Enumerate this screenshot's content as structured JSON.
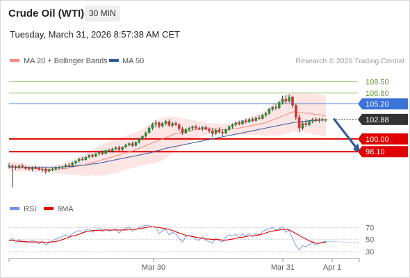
{
  "header": {
    "title": "Crude Oil (WTI)",
    "timeframe": "30 MIN",
    "datetime": "Tuesday, March 31, 2026 8:57:38 AM CET"
  },
  "colors": {
    "ma20": "#f08a80",
    "bollinger_fill": "#fde0df",
    "ma50": "#2f5b9b",
    "green_level": "#9bcf73",
    "blue_level": "#3b73d9",
    "red_level": "#e00000",
    "last_price": "#333333",
    "arrow": "#2f5b9b",
    "candle_up": "#2e8b3a",
    "candle_down": "#d23232",
    "rsi": "#6f93e6",
    "rsi_ma": "#e00000"
  },
  "chart_data": [
    {
      "type": "candlestick",
      "legend": [
        {
          "name": "MA 20 + Bollinger Bands",
          "color": "#f08a80"
        },
        {
          "name": "MA 50",
          "color": "#2f5b9b"
        }
      ],
      "copyright": "Research © 2026 Trading Central",
      "ylim": [
        90.8,
        110.4
      ],
      "x_ticks": [
        "Mar 30",
        "Mar 31",
        "Apr 1"
      ],
      "levels": [
        {
          "value": 108.5,
          "label": "108.50",
          "kind": "resistance",
          "color": "#9bcf73"
        },
        {
          "value": 106.8,
          "label": "106.80",
          "kind": "resistance",
          "color": "#9bcf73"
        },
        {
          "value": 105.2,
          "label": "105.20",
          "kind": "pivot",
          "color": "#3b73d9"
        },
        {
          "value": 102.88,
          "label": "102.88",
          "kind": "last",
          "color": "#333333"
        },
        {
          "value": 100.0,
          "label": "100.00",
          "kind": "target",
          "color": "#e00000"
        },
        {
          "value": 98.1,
          "label": "98.10",
          "kind": "target",
          "color": "#e00000"
        }
      ],
      "ohlc": [
        [
          96.0,
          96.4,
          95.6,
          96.0
        ],
        [
          96.0,
          96.2,
          92.8,
          95.9
        ],
        [
          95.9,
          96.1,
          95.4,
          95.7
        ],
        [
          95.7,
          96.2,
          95.5,
          96.0
        ],
        [
          96.0,
          96.3,
          95.6,
          95.8
        ],
        [
          95.8,
          96.0,
          95.4,
          95.6
        ],
        [
          95.6,
          95.9,
          95.3,
          95.5
        ],
        [
          95.5,
          95.9,
          95.2,
          95.7
        ],
        [
          95.7,
          96.0,
          95.5,
          95.6
        ],
        [
          95.6,
          95.9,
          95.3,
          95.4
        ],
        [
          95.4,
          95.8,
          95.1,
          95.5
        ],
        [
          95.5,
          95.7,
          94.8,
          95.2
        ],
        [
          95.2,
          95.6,
          95.0,
          95.4
        ],
        [
          95.4,
          95.7,
          95.2,
          95.5
        ],
        [
          95.5,
          95.9,
          95.3,
          95.7
        ],
        [
          95.7,
          96.0,
          95.5,
          95.8
        ],
        [
          95.8,
          96.0,
          95.5,
          95.9
        ],
        [
          95.9,
          96.3,
          95.7,
          96.1
        ],
        [
          96.1,
          96.4,
          95.8,
          96.0
        ],
        [
          96.0,
          96.6,
          95.9,
          96.4
        ],
        [
          96.4,
          96.8,
          96.2,
          96.7
        ],
        [
          96.7,
          97.2,
          96.5,
          97.0
        ],
        [
          97.0,
          97.3,
          96.7,
          96.9
        ],
        [
          96.9,
          97.4,
          96.8,
          97.3
        ],
        [
          97.3,
          97.7,
          97.1,
          97.6
        ],
        [
          97.6,
          97.8,
          97.2,
          97.4
        ],
        [
          97.4,
          97.9,
          97.3,
          97.8
        ],
        [
          97.8,
          98.2,
          97.5,
          98.0
        ],
        [
          98.0,
          98.3,
          97.6,
          97.8
        ],
        [
          97.8,
          98.4,
          97.7,
          98.3
        ],
        [
          98.3,
          98.6,
          98.0,
          98.2
        ],
        [
          98.2,
          98.7,
          98.0,
          98.5
        ],
        [
          98.5,
          98.9,
          98.3,
          98.7
        ],
        [
          98.7,
          99.0,
          98.2,
          98.4
        ],
        [
          98.4,
          98.9,
          98.2,
          98.8
        ],
        [
          98.8,
          99.3,
          98.6,
          99.1
        ],
        [
          99.1,
          99.5,
          98.9,
          99.3
        ],
        [
          99.3,
          99.6,
          98.8,
          99.0
        ],
        [
          99.0,
          99.6,
          98.9,
          99.5
        ],
        [
          99.5,
          100.2,
          99.3,
          100.0
        ],
        [
          100.0,
          100.5,
          99.8,
          100.4
        ],
        [
          100.4,
          101.1,
          100.2,
          100.9
        ],
        [
          100.9,
          101.9,
          100.8,
          101.6
        ],
        [
          101.6,
          102.4,
          101.3,
          102.2
        ],
        [
          102.2,
          102.8,
          101.7,
          102.4
        ],
        [
          102.4,
          102.6,
          101.6,
          101.9
        ],
        [
          101.9,
          102.5,
          101.7,
          102.3
        ],
        [
          102.3,
          102.8,
          102.0,
          102.6
        ],
        [
          102.6,
          102.9,
          101.8,
          102.0
        ],
        [
          102.0,
          102.5,
          101.7,
          102.3
        ],
        [
          102.3,
          102.6,
          101.9,
          102.1
        ],
        [
          102.1,
          102.3,
          101.2,
          101.5
        ],
        [
          101.5,
          101.8,
          100.6,
          100.9
        ],
        [
          100.9,
          101.6,
          100.7,
          101.4
        ],
        [
          101.4,
          101.8,
          101.1,
          101.6
        ],
        [
          101.6,
          102.0,
          101.3,
          101.8
        ],
        [
          101.8,
          102.1,
          101.4,
          101.6
        ],
        [
          101.6,
          101.9,
          101.3,
          101.5
        ],
        [
          101.5,
          101.9,
          101.2,
          101.7
        ],
        [
          101.7,
          102.0,
          101.3,
          101.4
        ],
        [
          101.4,
          101.7,
          100.9,
          101.2
        ],
        [
          101.2,
          101.6,
          100.3,
          100.8
        ],
        [
          100.8,
          101.5,
          100.6,
          101.3
        ],
        [
          101.3,
          101.7,
          100.9,
          101.0
        ],
        [
          101.0,
          101.4,
          100.4,
          100.9
        ],
        [
          100.9,
          101.5,
          100.7,
          101.4
        ],
        [
          101.4,
          102.0,
          101.2,
          101.8
        ],
        [
          101.8,
          102.3,
          101.5,
          102.1
        ],
        [
          102.1,
          102.6,
          101.8,
          102.4
        ],
        [
          102.4,
          102.7,
          102.0,
          102.2
        ],
        [
          102.2,
          102.8,
          102.1,
          102.7
        ],
        [
          102.7,
          103.0,
          102.3,
          102.5
        ],
        [
          102.5,
          103.1,
          102.4,
          102.9
        ],
        [
          102.9,
          103.2,
          102.5,
          102.7
        ],
        [
          102.7,
          103.3,
          102.6,
          103.1
        ],
        [
          103.1,
          103.5,
          102.8,
          103.0
        ],
        [
          103.0,
          103.7,
          102.9,
          103.5
        ],
        [
          103.5,
          104.0,
          103.2,
          103.8
        ],
        [
          103.8,
          104.6,
          103.6,
          104.4
        ],
        [
          104.4,
          104.9,
          104.1,
          104.7
        ],
        [
          104.7,
          105.1,
          104.3,
          104.6
        ],
        [
          104.6,
          105.6,
          104.4,
          105.4
        ],
        [
          105.4,
          106.4,
          105.1,
          105.9
        ],
        [
          105.9,
          106.5,
          105.3,
          105.6
        ],
        [
          105.6,
          106.6,
          105.4,
          106.2
        ],
        [
          106.2,
          106.4,
          104.6,
          105.0
        ],
        [
          105.0,
          105.2,
          102.8,
          103.2
        ],
        [
          103.2,
          103.6,
          101.0,
          101.6
        ],
        [
          101.6,
          102.6,
          101.3,
          102.3
        ],
        [
          102.3,
          102.9,
          101.8,
          102.1
        ],
        [
          102.1,
          102.8,
          101.9,
          102.6
        ],
        [
          102.6,
          103.1,
          102.3,
          102.9
        ],
        [
          102.9,
          103.2,
          102.5,
          102.7
        ],
        [
          102.7,
          103.1,
          102.4,
          102.9
        ],
        [
          102.9,
          103.1,
          102.6,
          102.8
        ],
        [
          102.8,
          103.0,
          102.5,
          102.88
        ]
      ],
      "ma20": [
        95.9,
        95.9,
        95.8,
        95.8,
        95.8,
        95.7,
        95.7,
        95.6,
        95.6,
        95.6,
        95.5,
        95.5,
        95.5,
        95.5,
        95.5,
        95.5,
        95.6,
        95.6,
        95.7,
        95.8,
        95.9,
        96.0,
        96.1,
        96.2,
        96.4,
        96.5,
        96.6,
        96.8,
        96.9,
        97.0,
        97.2,
        97.3,
        97.5,
        97.6,
        97.8,
        97.9,
        98.1,
        98.2,
        98.4,
        98.6,
        98.8,
        99.0,
        99.2,
        99.4,
        99.6,
        99.8,
        100.0,
        100.2,
        100.4,
        100.6,
        100.8,
        100.9,
        101.0,
        101.1,
        101.2,
        101.3,
        101.4,
        101.4,
        101.5,
        101.5,
        101.5,
        101.5,
        101.5,
        101.4,
        101.4,
        101.4,
        101.4,
        101.5,
        101.5,
        101.6,
        101.7,
        101.8,
        101.9,
        102.0,
        102.1,
        102.2,
        102.3,
        102.4,
        102.6,
        102.8,
        103.0,
        103.2,
        103.4,
        103.6,
        103.8,
        104.0,
        104.0,
        103.9,
        103.9,
        103.8,
        103.8,
        103.7,
        103.6,
        103.6,
        103.5,
        103.4
      ],
      "bb_upper": [
        96.6,
        96.6,
        96.5,
        96.5,
        96.4,
        96.3,
        96.2,
        96.2,
        96.1,
        96.1,
        96.0,
        96.0,
        96.0,
        96.0,
        96.1,
        96.2,
        96.3,
        96.5,
        96.7,
        96.9,
        97.1,
        97.4,
        97.6,
        97.9,
        98.2,
        98.4,
        98.7,
        99.0,
        99.2,
        99.4,
        99.6,
        99.8,
        100.0,
        100.2,
        100.3,
        100.5,
        100.6,
        100.8,
        101.0,
        101.2,
        101.5,
        101.8,
        102.1,
        102.5,
        102.8,
        103.0,
        103.2,
        103.3,
        103.3,
        103.3,
        103.3,
        103.2,
        103.1,
        103.0,
        102.9,
        102.8,
        102.7,
        102.6,
        102.5,
        102.4,
        102.3,
        102.3,
        102.3,
        102.2,
        102.2,
        102.2,
        102.3,
        102.4,
        102.5,
        102.6,
        102.8,
        103.0,
        103.2,
        103.4,
        103.6,
        103.8,
        104.1,
        104.4,
        104.7,
        105.1,
        105.5,
        105.9,
        106.2,
        106.5,
        106.7,
        106.9,
        106.9,
        106.9,
        106.8,
        106.8,
        106.7,
        106.7,
        106.6,
        106.6,
        106.5,
        106.5
      ],
      "bb_lower": [
        95.2,
        95.2,
        95.1,
        95.1,
        95.2,
        95.1,
        95.2,
        95.0,
        95.1,
        95.1,
        95.0,
        95.0,
        95.0,
        95.0,
        94.9,
        94.8,
        94.9,
        94.7,
        94.7,
        94.7,
        94.7,
        94.6,
        94.6,
        94.5,
        94.6,
        94.6,
        94.5,
        94.6,
        94.6,
        94.6,
        94.8,
        94.8,
        95.0,
        95.0,
        95.3,
        95.3,
        95.6,
        95.6,
        95.8,
        96.0,
        96.1,
        96.2,
        96.3,
        96.3,
        96.4,
        96.6,
        96.8,
        97.1,
        97.5,
        97.9,
        98.3,
        98.6,
        98.9,
        99.2,
        99.5,
        99.8,
        100.1,
        100.2,
        100.5,
        100.6,
        100.7,
        100.7,
        100.7,
        100.6,
        100.6,
        100.6,
        100.5,
        100.6,
        100.5,
        100.6,
        100.6,
        100.6,
        100.6,
        100.6,
        100.6,
        100.6,
        100.5,
        100.4,
        100.5,
        100.5,
        100.5,
        100.5,
        100.6,
        100.7,
        100.9,
        101.1,
        101.1,
        100.9,
        101.0,
        100.8,
        100.9,
        100.7,
        100.6,
        100.6,
        100.5,
        100.3
      ],
      "ma50": [
        95.8,
        95.8,
        95.8,
        95.8,
        95.8,
        95.8,
        95.8,
        95.8,
        95.8,
        95.8,
        95.8,
        95.8,
        95.8,
        95.8,
        95.8,
        95.8,
        95.8,
        95.9,
        95.9,
        95.9,
        96.0,
        96.0,
        96.1,
        96.1,
        96.2,
        96.3,
        96.3,
        96.4,
        96.5,
        96.6,
        96.7,
        96.8,
        96.9,
        97.0,
        97.1,
        97.2,
        97.3,
        97.4,
        97.5,
        97.6,
        97.7,
        97.8,
        97.9,
        98.0,
        98.2,
        98.3,
        98.4,
        98.6,
        98.7,
        98.8,
        98.9,
        99.0,
        99.1,
        99.2,
        99.3,
        99.4,
        99.5,
        99.6,
        99.7,
        99.8,
        99.9,
        100.0,
        100.1,
        100.2,
        100.3,
        100.4,
        100.5,
        100.6,
        100.7,
        100.8,
        100.9,
        101.0,
        101.1,
        101.2,
        101.3,
        101.4,
        101.5,
        101.6,
        101.7,
        101.8,
        101.9,
        102.0,
        102.1,
        102.2,
        102.3,
        102.4,
        102.5,
        102.5,
        102.6,
        102.6,
        102.7,
        102.7,
        102.7,
        102.8,
        102.8,
        102.8
      ],
      "projection": {
        "from_price": 102.9,
        "to_price": 98.1
      }
    },
    {
      "type": "line",
      "legend": [
        {
          "name": "RSI",
          "color": "#6f93e6"
        },
        {
          "name": "9MA",
          "color": "#e00000"
        }
      ],
      "ylim": [
        22,
        82
      ],
      "y_ticks": [
        70,
        50,
        30
      ],
      "series": [
        {
          "name": "RSI",
          "values": [
            48,
            52,
            45,
            50,
            47,
            44,
            46,
            49,
            46,
            43,
            47,
            41,
            45,
            48,
            51,
            53,
            55,
            58,
            54,
            60,
            63,
            65,
            61,
            66,
            68,
            62,
            66,
            69,
            63,
            67,
            64,
            66,
            68,
            61,
            66,
            69,
            71,
            64,
            67,
            70,
            72,
            74,
            73,
            71,
            70,
            60,
            65,
            67,
            58,
            62,
            60,
            52,
            46,
            55,
            57,
            56,
            50,
            49,
            55,
            48,
            47,
            44,
            53,
            48,
            46,
            54,
            58,
            56,
            59,
            53,
            60,
            56,
            60,
            55,
            61,
            56,
            64,
            66,
            68,
            70,
            66,
            68,
            71,
            62,
            65,
            52,
            40,
            33,
            40,
            38,
            42,
            45,
            41,
            44,
            46,
            47
          ]
        },
        {
          "name": "9MA",
          "values": [
            48,
            48,
            48,
            47,
            47,
            47,
            46,
            46,
            46,
            46,
            46,
            45,
            46,
            46,
            47,
            48,
            50,
            52,
            54,
            56,
            57,
            59,
            61,
            63,
            64,
            65,
            65,
            65,
            66,
            66,
            66,
            66,
            66,
            66,
            66,
            66,
            67,
            67,
            67,
            68,
            69,
            70,
            71,
            71,
            71,
            70,
            69,
            68,
            67,
            65,
            63,
            61,
            59,
            57,
            56,
            55,
            54,
            53,
            52,
            51,
            51,
            50,
            50,
            50,
            49,
            49,
            50,
            51,
            52,
            53,
            54,
            55,
            56,
            56,
            57,
            58,
            59,
            61,
            63,
            64,
            65,
            66,
            67,
            67,
            66,
            63,
            60,
            57,
            54,
            51,
            48,
            46,
            44,
            44,
            45,
            46
          ]
        }
      ],
      "x_ticks": [
        "Mar 30",
        "Mar 31",
        "Apr 1"
      ]
    }
  ]
}
